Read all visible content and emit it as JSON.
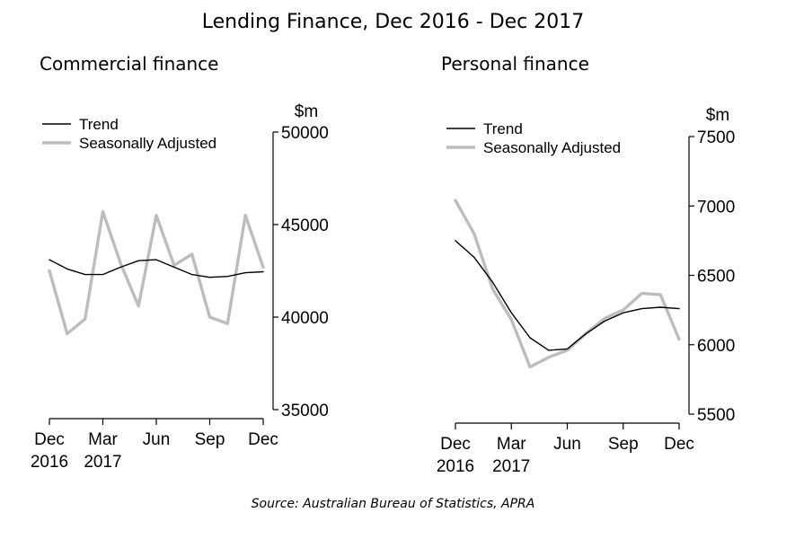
{
  "title": "Lending Finance, Dec 2016 - Dec 2017",
  "source": "Source: Australian Bureau of Statistics, APRA",
  "colors": {
    "trend": "#000000",
    "seasonally_adjusted": "#bdbdbd",
    "axis": "#000000"
  },
  "chart_data": [
    {
      "type": "line",
      "title": "Commercial finance",
      "ylabel": "$m",
      "ylim": [
        35000,
        50000
      ],
      "y_ticks": [
        "50000",
        "45000",
        "40000",
        "35000"
      ],
      "y_tick_values": [
        50000,
        45000,
        40000,
        35000
      ],
      "x": [
        "Dec 2016",
        "Jan 2017",
        "Feb 2017",
        "Mar 2017",
        "Apr 2017",
        "May 2017",
        "Jun 2017",
        "Jul 2017",
        "Aug 2017",
        "Sep 2017",
        "Oct 2017",
        "Nov 2017",
        "Dec 2017"
      ],
      "x_ticks": [
        {
          "index": 0,
          "line1": "Dec",
          "line2": "2016"
        },
        {
          "index": 3,
          "line1": "Mar",
          "line2": "2017"
        },
        {
          "index": 6,
          "line1": "Jun",
          "line2": ""
        },
        {
          "index": 9,
          "line1": "Sep",
          "line2": ""
        },
        {
          "index": 12,
          "line1": "Dec",
          "line2": ""
        }
      ],
      "legend": [
        "Trend",
        "Seasonally Adjusted"
      ],
      "legend_position": "top-left",
      "series": [
        {
          "name": "Trend",
          "values": [
            43100,
            42600,
            42300,
            42300,
            42700,
            43050,
            43100,
            42700,
            42300,
            42150,
            42200,
            42400,
            42450
          ]
        },
        {
          "name": "Seasonally Adjusted",
          "values": [
            42500,
            39100,
            39900,
            45700,
            42900,
            40600,
            45500,
            42800,
            43400,
            40000,
            39650,
            45500,
            42700
          ]
        }
      ]
    },
    {
      "type": "line",
      "title": "Personal finance",
      "ylabel": "$m",
      "ylim": [
        5500,
        7500
      ],
      "y_ticks": [
        "7500",
        "7000",
        "6500",
        "6000",
        "5500"
      ],
      "y_tick_values": [
        7500,
        7000,
        6500,
        6000,
        5500
      ],
      "x": [
        "Dec 2016",
        "Jan 2017",
        "Feb 2017",
        "Mar 2017",
        "Apr 2017",
        "May 2017",
        "Jun 2017",
        "Jul 2017",
        "Aug 2017",
        "Sep 2017",
        "Oct 2017",
        "Nov 2017",
        "Dec 2017"
      ],
      "x_ticks": [
        {
          "index": 0,
          "line1": "Dec",
          "line2": "2016"
        },
        {
          "index": 3,
          "line1": "Mar",
          "line2": "2017"
        },
        {
          "index": 6,
          "line1": "Jun",
          "line2": ""
        },
        {
          "index": 9,
          "line1": "Sep",
          "line2": ""
        },
        {
          "index": 12,
          "line1": "Dec",
          "line2": ""
        }
      ],
      "legend": [
        "Trend",
        "Seasonally Adjusted"
      ],
      "legend_position": "top-left",
      "series": [
        {
          "name": "Trend",
          "values": [
            6750,
            6630,
            6450,
            6230,
            6050,
            5960,
            5970,
            6080,
            6170,
            6230,
            6260,
            6270,
            6260
          ]
        },
        {
          "name": "Seasonally Adjusted",
          "values": [
            7040,
            6800,
            6400,
            6180,
            5840,
            5910,
            5960,
            6080,
            6190,
            6250,
            6370,
            6360,
            6040
          ]
        }
      ]
    }
  ]
}
